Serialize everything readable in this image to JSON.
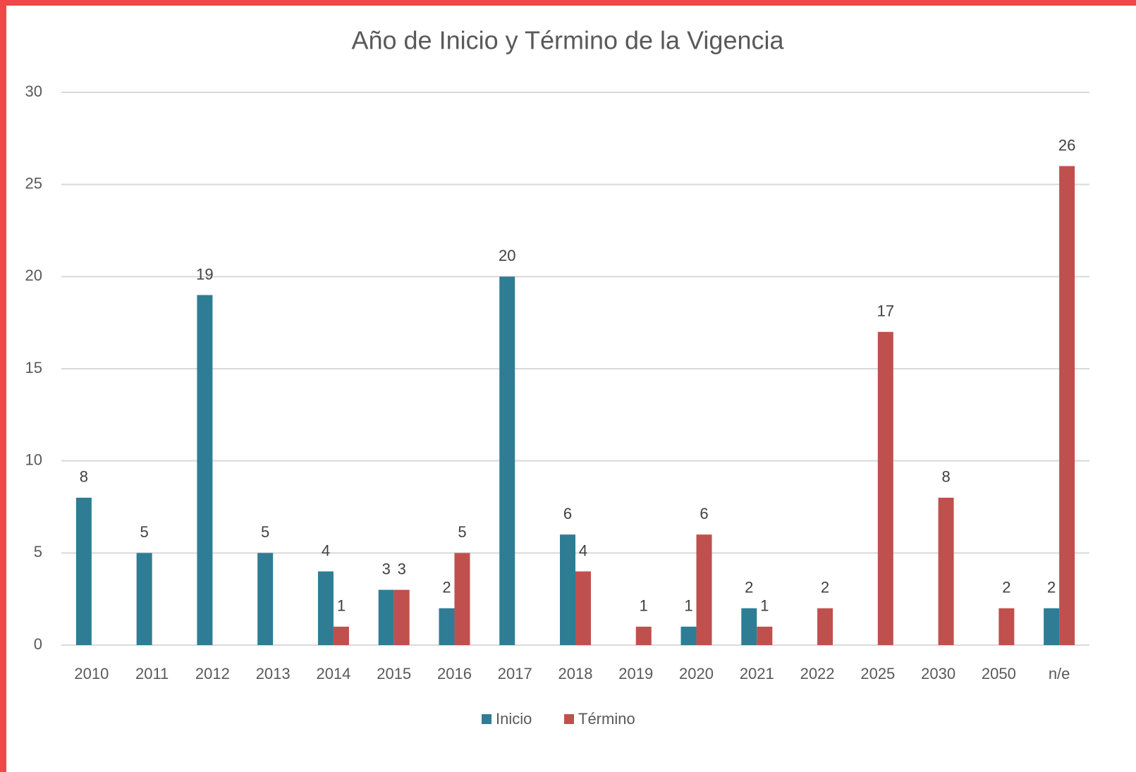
{
  "chart_data": {
    "type": "bar",
    "title": "Año de Inicio y Término de la Vigencia",
    "categories": [
      "2010",
      "2011",
      "2012",
      "2013",
      "2014",
      "2015",
      "2016",
      "2017",
      "2018",
      "2019",
      "2020",
      "2021",
      "2022",
      "2025",
      "2030",
      "2050",
      "n/e"
    ],
    "series": [
      {
        "name": "Inicio",
        "color": "#2e7d95",
        "values": [
          8,
          5,
          19,
          5,
          4,
          3,
          2,
          20,
          6,
          null,
          1,
          2,
          null,
          null,
          null,
          null,
          2
        ]
      },
      {
        "name": "Término",
        "color": "#c0504d",
        "values": [
          null,
          null,
          null,
          null,
          1,
          3,
          5,
          null,
          4,
          1,
          6,
          1,
          2,
          17,
          8,
          2,
          26
        ]
      }
    ],
    "ylim": [
      0,
      30
    ],
    "yticks": [
      0,
      5,
      10,
      15,
      20,
      25,
      30
    ],
    "grid": true,
    "legend": "bottom"
  }
}
